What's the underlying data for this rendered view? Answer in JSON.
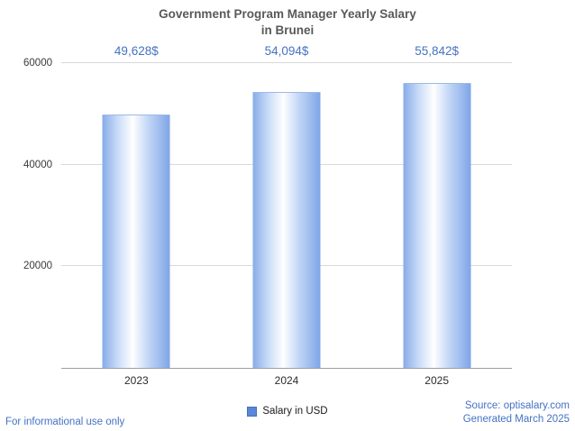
{
  "title": {
    "line1": "Government Program Manager Yearly Salary",
    "line2": "in Brunei"
  },
  "chart_data": {
    "type": "bar",
    "title": "Government Program Manager Yearly Salary in Brunei",
    "categories": [
      "2023",
      "2024",
      "2025"
    ],
    "values": [
      49628,
      54094,
      55842
    ],
    "value_labels": [
      "49,628$",
      "54,094$",
      "55,842$"
    ],
    "xlabel": "",
    "ylabel": "",
    "ylim": [
      0,
      60000
    ],
    "yticks": [
      20000,
      40000,
      60000
    ],
    "ytick_labels": [
      "20000",
      "40000",
      "60000"
    ],
    "grid": true,
    "legend_entries": [
      "Salary in USD"
    ],
    "legend_position": "bottom",
    "bar_color_edge": "#7ea5e7",
    "bar_color_center": "#ffffff",
    "value_label_color": "#4472c4"
  },
  "legend": {
    "label": "Salary in USD",
    "marker_color": "#5b87d7"
  },
  "footer": {
    "disclaimer": "For informational use only",
    "source": "Source: optisalary.com",
    "generated": "Generated March 2025"
  }
}
